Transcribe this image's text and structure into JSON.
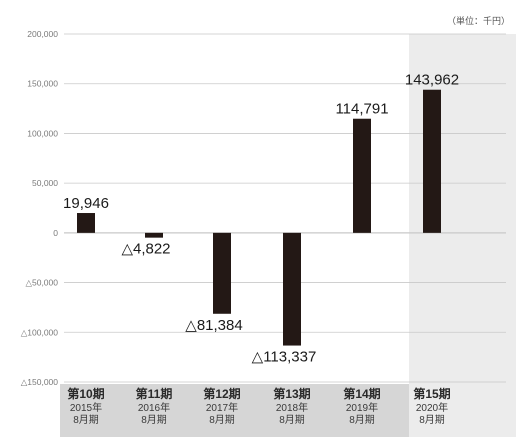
{
  "chart_data": {
    "type": "bar",
    "unit": "（単位：千円）",
    "categories": [
      {
        "period": "第10期",
        "year": "2015年",
        "month": "8月期"
      },
      {
        "period": "第11期",
        "year": "2016年",
        "month": "8月期"
      },
      {
        "period": "第12期",
        "year": "2017年",
        "month": "8月期"
      },
      {
        "period": "第13期",
        "year": "2018年",
        "month": "8月期"
      },
      {
        "period": "第14期",
        "year": "2019年",
        "month": "8月期"
      },
      {
        "period": "第15期",
        "year": "2020年",
        "month": "8月期"
      }
    ],
    "values": [
      19946,
      -4822,
      -81384,
      -113337,
      114791,
      143962
    ],
    "data_labels": [
      "19,946",
      "△4,822",
      "△81,384",
      "△113,337",
      "114,791",
      "143,962"
    ],
    "ylim": [
      -150000,
      200000
    ],
    "yticks": [
      {
        "value": 200000,
        "label": "200,000"
      },
      {
        "value": 150000,
        "label": "150,000"
      },
      {
        "value": 100000,
        "label": "100,000"
      },
      {
        "value": 50000,
        "label": "50,000"
      },
      {
        "value": 0,
        "label": "0"
      },
      {
        "value": -50000,
        "label": "△50,000"
      },
      {
        "value": -100000,
        "label": "△100,000"
      },
      {
        "value": -150000,
        "label": "△150,000"
      }
    ],
    "highlighted_category": 5,
    "grid": true,
    "colors": {
      "bar": "#231815",
      "grid": "#c9c9c9",
      "axis_band": "#d6d6d6",
      "highlight_band": "#ececec"
    }
  }
}
